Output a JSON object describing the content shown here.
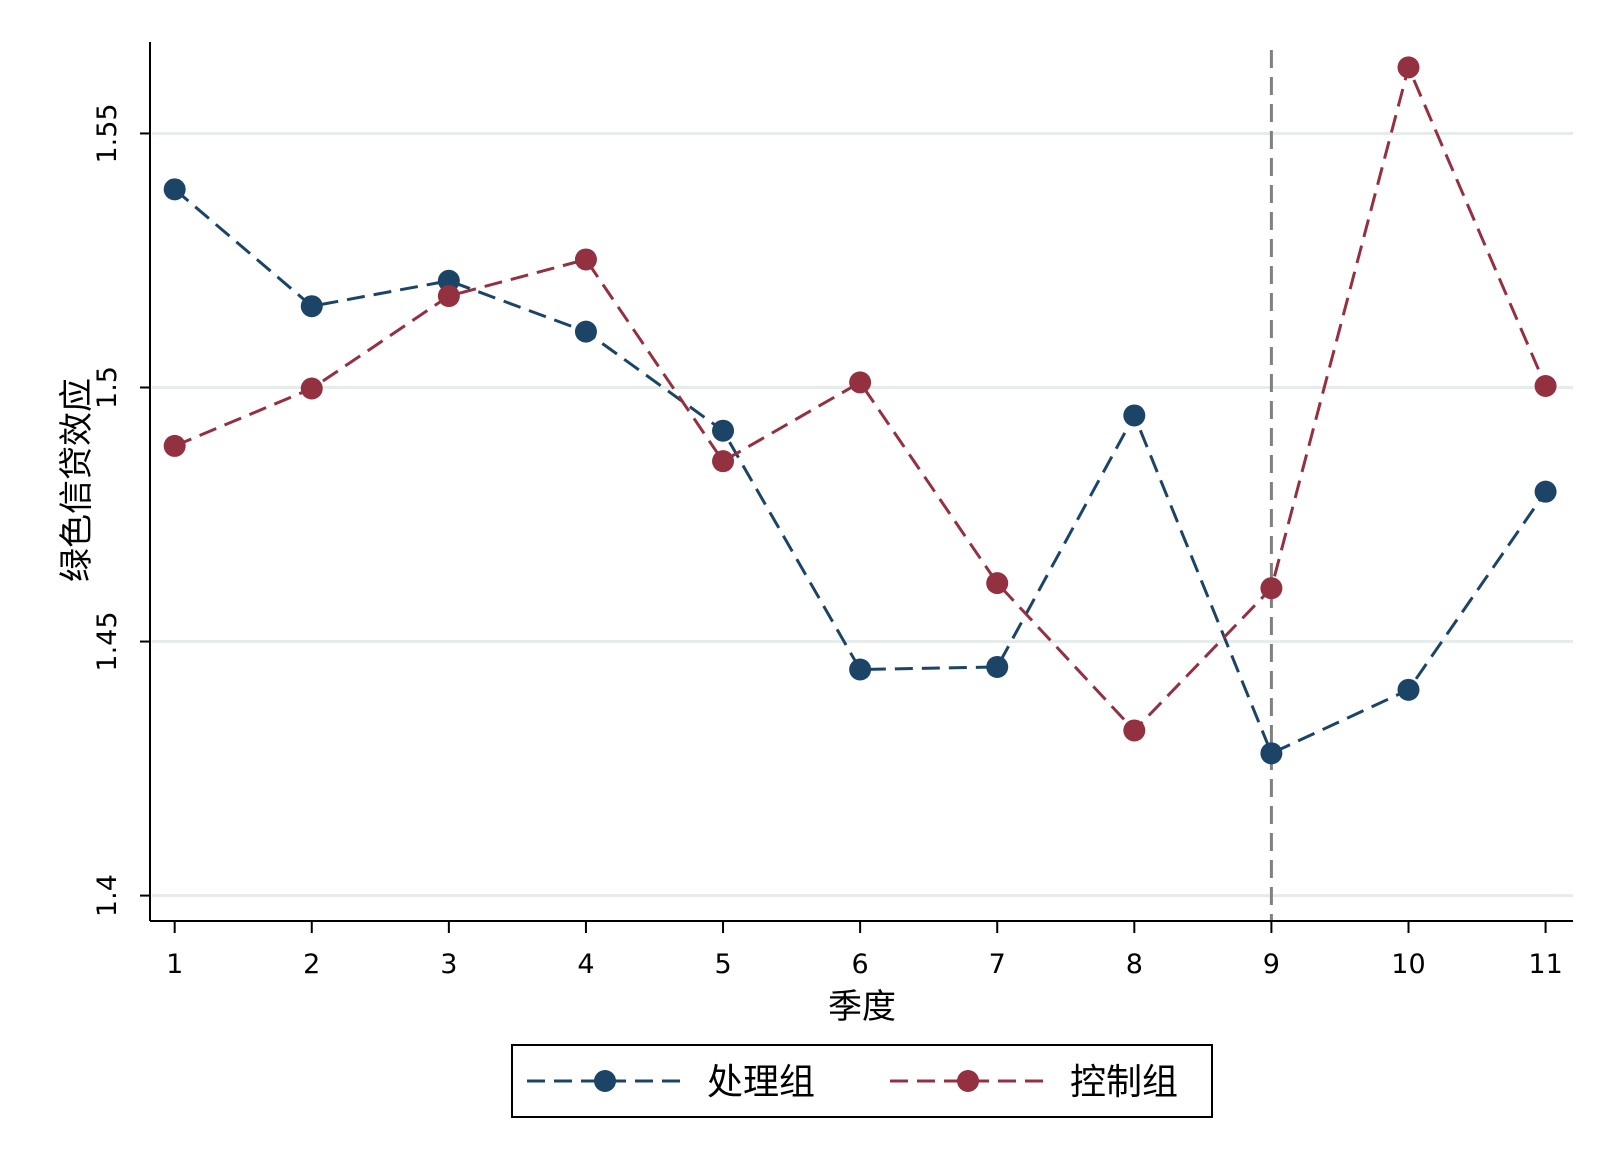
{
  "chart_data": {
    "type": "line",
    "xlabel": "季度",
    "ylabel": "绿色信贷效应",
    "x": [
      1,
      2,
      3,
      4,
      5,
      6,
      7,
      8,
      9,
      10,
      11
    ],
    "xlim": [
      0.82,
      11.2
    ],
    "ylim": [
      1.395,
      1.568
    ],
    "x_ticks": [
      "1",
      "2",
      "3",
      "4",
      "5",
      "6",
      "7",
      "8",
      "9",
      "10",
      "11"
    ],
    "y_ticks": [
      {
        "value": 1.4,
        "label": "1.4"
      },
      {
        "value": 1.45,
        "label": "1.45"
      },
      {
        "value": 1.5,
        "label": "1.5"
      },
      {
        "value": 1.55,
        "label": "1.55"
      }
    ],
    "grid": "horizontal",
    "reference_line": {
      "x": 9,
      "style": "dashed",
      "color": "#808080"
    },
    "series": [
      {
        "name": "处理组",
        "color": "#1b4467",
        "line_style": "dashed",
        "marker": "circle",
        "values": [
          1.539,
          1.516,
          1.521,
          1.511,
          1.4915,
          1.4445,
          1.445,
          1.4945,
          1.428,
          1.4405,
          1.4795
        ]
      },
      {
        "name": "控制组",
        "color": "#943140",
        "line_style": "dashed",
        "marker": "circle",
        "values": [
          1.4885,
          1.4998,
          1.518,
          1.5252,
          1.4855,
          1.501,
          1.4615,
          1.4325,
          1.4605,
          1.563,
          1.5003
        ]
      }
    ],
    "legend_position": "bottom",
    "colors": {
      "grid": "#e6ece9",
      "axis": "#000000",
      "reference": "#808080"
    }
  }
}
